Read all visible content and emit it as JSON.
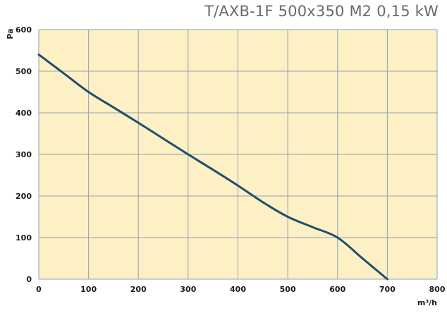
{
  "chart_data": {
    "type": "line",
    "title": "T/AXB-1F 500x350 M2  0,15 kW",
    "xlabel": "m³/h",
    "ylabel": "Pa",
    "xlim": [
      0,
      800
    ],
    "ylim": [
      0,
      600
    ],
    "xticks": [
      0,
      100,
      200,
      300,
      400,
      500,
      600,
      700,
      800
    ],
    "yticks": [
      0,
      100,
      200,
      300,
      400,
      500,
      600
    ],
    "grid": true,
    "series": [
      {
        "x": [
          0,
          50,
          100,
          150,
          200,
          250,
          300,
          350,
          400,
          450,
          500,
          550,
          600,
          650,
          700
        ],
        "y": [
          540,
          495,
          450,
          413,
          376,
          338,
          300,
          263,
          225,
          185,
          150,
          125,
          100,
          50,
          0
        ]
      }
    ]
  },
  "colors": {
    "plot_background": "#fdf0c4",
    "grid": "#8fa2b4",
    "line": "#1d4f6f",
    "title": "#6a6a6a",
    "axis_text": "#1a1a1a"
  }
}
